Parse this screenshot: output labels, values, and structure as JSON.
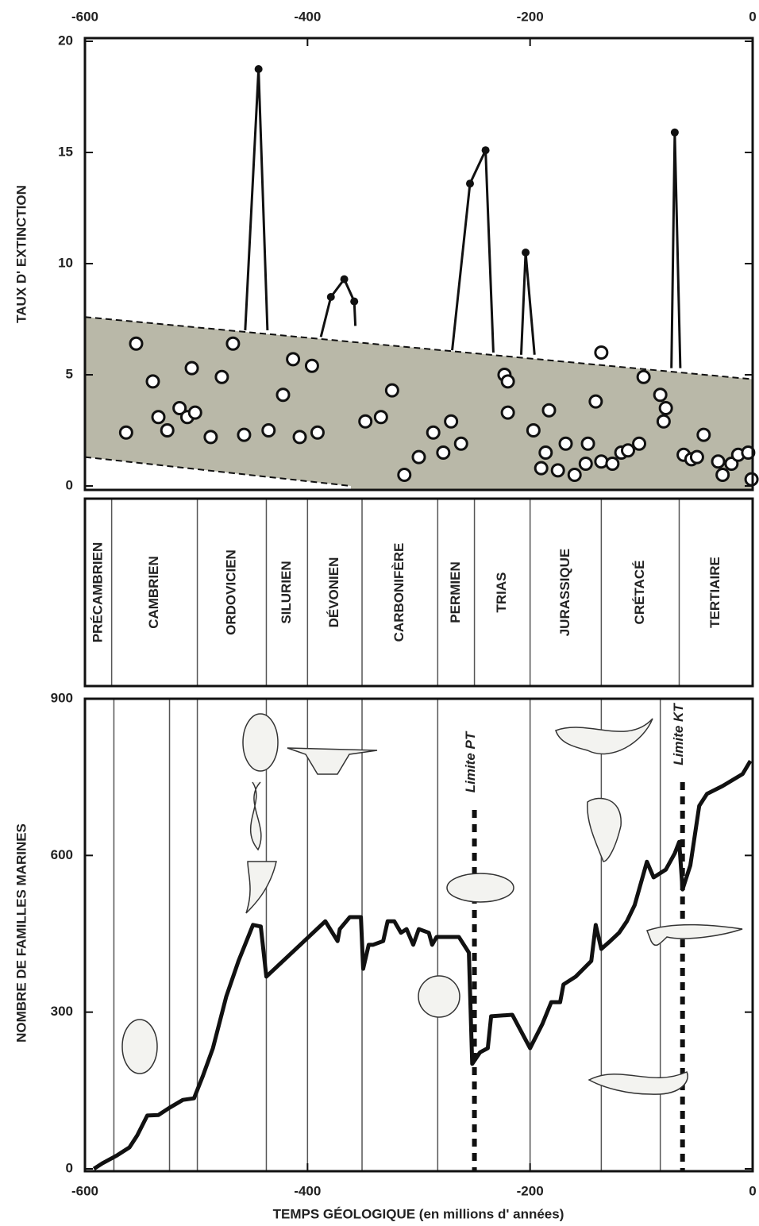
{
  "chart_data": [
    {
      "type": "scatter",
      "y_label": "TAUX D' EXTINCTION",
      "xlim": [
        -600,
        0
      ],
      "xticks": [
        -600,
        -400,
        -200,
        0
      ],
      "ylim": [
        0,
        20
      ],
      "yticks": [
        0,
        5,
        10,
        15,
        20
      ],
      "band": {
        "x": [
          -600,
          0
        ],
        "upper": [
          7.6,
          4.8
        ],
        "lower_x": [
          -600,
          -361
        ],
        "lower": [
          1.3,
          0
        ]
      },
      "points": {
        "x": [
          -563,
          -554,
          -539,
          -534,
          -526,
          -515,
          -508,
          -504,
          -501,
          -487,
          -477,
          -467,
          -457,
          -435,
          -422,
          -413,
          -407,
          -396,
          -391,
          -348,
          -334,
          -324,
          -313,
          -300,
          -287,
          -278,
          -271,
          -262,
          -223,
          -220,
          -220,
          -197,
          -190,
          -186,
          -183,
          -175,
          -168,
          -160,
          -150,
          -148,
          -141,
          -136,
          -136,
          -126,
          -118,
          -112,
          -102,
          -98,
          -83,
          -78,
          -80,
          -62,
          -55,
          -50,
          -44,
          -31,
          -27,
          -19,
          -13,
          -4,
          -1
        ],
        "y": [
          2.4,
          6.4,
          4.7,
          3.1,
          2.5,
          3.5,
          3.1,
          5.3,
          3.3,
          2.2,
          4.9,
          6.4,
          2.3,
          2.5,
          4.1,
          5.7,
          2.2,
          5.4,
          2.4,
          2.9,
          3.1,
          4.3,
          0.5,
          1.3,
          2.4,
          1.5,
          2.9,
          1.9,
          5.0,
          4.7,
          3.3,
          2.5,
          0.8,
          1.5,
          3.4,
          0.7,
          1.9,
          0.5,
          1.0,
          1.9,
          3.8,
          6.0,
          1.1,
          1.0,
          1.5,
          1.6,
          1.9,
          4.9,
          4.1,
          3.5,
          2.9,
          1.4,
          1.2,
          1.3,
          2.3,
          1.1,
          0.5,
          1.0,
          1.4,
          1.5,
          0.3
        ]
      },
      "peaks": [
        {
          "x": [
            -456,
            -444,
            -436
          ],
          "values": [
            7.0,
            18.75,
            7.0
          ]
        },
        {
          "x": [
            -388,
            -379,
            -367,
            -358,
            -357
          ],
          "values": [
            6.7,
            8.5,
            9.3,
            8.3,
            7.2
          ]
        },
        {
          "x": [
            -270,
            -254,
            -240,
            -233
          ],
          "values": [
            6.1,
            13.6,
            15.1,
            6.0
          ]
        },
        {
          "x": [
            -208,
            -204,
            -196
          ],
          "values": [
            5.9,
            10.5,
            5.9
          ]
        },
        {
          "x": [
            -73,
            -70,
            -65
          ],
          "values": [
            5.3,
            15.9,
            5.3
          ]
        }
      ]
    },
    {
      "type": "periods",
      "xlim": [
        -600,
        0
      ],
      "names": [
        "PRÉCAMBRIEN",
        "CAMBRIEN",
        "ORDOVICIEN",
        "SILURIEN",
        "DÉVONIEN",
        "CARBONIFÈRE",
        "PERMIEN",
        "TRIAS",
        "JURASSIQUE",
        "CRÉTACÉ",
        "TERTIAIRE"
      ],
      "boundaries": [
        -576,
        -499,
        -437,
        -400,
        -351,
        -283,
        -250,
        -200,
        -136,
        -66
      ]
    },
    {
      "type": "line",
      "y_label": "NOMBRE DE FAMILLES MARINES",
      "x_label": "TEMPS GÉOLOGIQUE (en millions d' années)",
      "xlim": [
        -600,
        0
      ],
      "xticks": [
        -600,
        -400,
        -200,
        0
      ],
      "ylim": [
        0,
        900
      ],
      "yticks": [
        0,
        300,
        600,
        900
      ],
      "dividers": [
        -574,
        -524,
        -499,
        -437,
        -400,
        -351,
        -283,
        -200,
        -136,
        -83
      ],
      "events": [
        {
          "label": "Limite PT",
          "x": -250
        },
        {
          "label": "Limite KT",
          "x": -63
        }
      ],
      "x": [
        -592,
        -584,
        -571,
        -560,
        -553,
        -544,
        -534,
        -524,
        -512,
        -502,
        -494,
        -485,
        -473,
        -462,
        -449,
        -442,
        -437,
        -384,
        -373,
        -371,
        -362,
        -352,
        -350,
        -345,
        -341,
        -332,
        -328,
        -322,
        -316,
        -311,
        -305,
        -300,
        -291,
        -288,
        -284,
        -264,
        -255,
        -252,
        -245,
        -238,
        -235,
        -216,
        -200,
        -189,
        -181,
        -173,
        -170,
        -159,
        -145,
        -141,
        -136,
        -128,
        -120,
        -113,
        -106,
        -95,
        -89,
        -78,
        -70,
        -66,
        -63,
        -56,
        -48,
        -41,
        -27,
        -9,
        -2
      ],
      "values": [
        0,
        11,
        26,
        41,
        64,
        102,
        103,
        117,
        132,
        135,
        178,
        231,
        330,
        398,
        467,
        464,
        368,
        474,
        436,
        459,
        482,
        482,
        383,
        429,
        429,
        436,
        474,
        474,
        452,
        459,
        429,
        459,
        452,
        429,
        444,
        444,
        414,
        201,
        223,
        231,
        292,
        295,
        231,
        277,
        319,
        319,
        353,
        368,
        398,
        467,
        421,
        436,
        452,
        474,
        505,
        588,
        558,
        573,
        604,
        626,
        535,
        581,
        695,
        718,
        733,
        756,
        781
      ]
    }
  ]
}
